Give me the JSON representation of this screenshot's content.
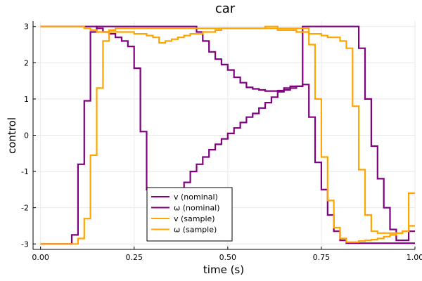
{
  "chart_data": {
    "type": "line",
    "step": true,
    "title": "car",
    "xlabel": "time (s)",
    "ylabel": "control",
    "xlim": [
      -0.02,
      1.0
    ],
    "ylim": [
      -3.15,
      3.15
    ],
    "grid": true,
    "legend_position": "bottom-center",
    "x_ticks": [
      0.0,
      0.25,
      0.5,
      0.75,
      1.0
    ],
    "x_tick_labels": [
      "0.00",
      "0.25",
      "0.50",
      "0.75",
      "1.00"
    ],
    "y_ticks": [
      -3,
      -2,
      -1,
      0,
      1,
      2,
      3
    ],
    "y_tick_labels": [
      "-3",
      "-2",
      "-1",
      "0",
      "1",
      "2",
      "3"
    ],
    "x": [
      0.0,
      0.0167,
      0.0333,
      0.05,
      0.0667,
      0.0833,
      0.1,
      0.1167,
      0.1333,
      0.15,
      0.1667,
      0.1833,
      0.2,
      0.2167,
      0.2333,
      0.25,
      0.2667,
      0.2833,
      0.3,
      0.3167,
      0.3333,
      0.35,
      0.3667,
      0.3833,
      0.4,
      0.4167,
      0.4333,
      0.45,
      0.4667,
      0.4833,
      0.5,
      0.5167,
      0.5333,
      0.55,
      0.5667,
      0.5833,
      0.6,
      0.6167,
      0.6333,
      0.65,
      0.6667,
      0.6833,
      0.7,
      0.7167,
      0.7333,
      0.75,
      0.7667,
      0.7833,
      0.8,
      0.8167,
      0.8333,
      0.85,
      0.8667,
      0.8833,
      0.9,
      0.9167,
      0.9333,
      0.95,
      0.9667,
      0.9833
    ],
    "x_end": 1.0,
    "series": [
      {
        "name": "v (nominal)",
        "color": "#800080",
        "values": [
          -3.0,
          -3.0,
          -3.0,
          -3.0,
          -3.0,
          -2.75,
          -0.8,
          0.95,
          2.85,
          3.0,
          3.0,
          3.0,
          3.0,
          3.0,
          3.0,
          3.0,
          3.0,
          3.0,
          3.0,
          3.0,
          3.0,
          3.0,
          3.0,
          3.0,
          3.0,
          2.85,
          2.6,
          2.3,
          2.1,
          1.95,
          1.8,
          1.6,
          1.45,
          1.32,
          1.28,
          1.25,
          1.22,
          1.22,
          1.23,
          1.25,
          1.3,
          1.35,
          1.4,
          0.5,
          -0.75,
          -1.5,
          -2.2,
          -2.65,
          -2.9,
          -2.98,
          -2.98,
          -2.98,
          -2.98,
          -2.98,
          -2.98,
          -2.98,
          -2.98,
          -2.98,
          -2.98,
          -2.98
        ]
      },
      {
        "name": "ω (nominal)",
        "color": "#800080",
        "values": [
          3.0,
          3.0,
          3.0,
          3.0,
          3.0,
          3.0,
          3.0,
          3.0,
          3.0,
          2.95,
          2.85,
          2.8,
          2.7,
          2.6,
          2.45,
          1.85,
          0.1,
          -1.5,
          -2.6,
          -2.5,
          -2.2,
          -1.9,
          -1.6,
          -1.3,
          -1.0,
          -0.8,
          -0.6,
          -0.4,
          -0.25,
          -0.1,
          0.05,
          0.2,
          0.35,
          0.5,
          0.6,
          0.75,
          0.9,
          1.05,
          1.2,
          1.3,
          1.35,
          1.35,
          3.0,
          3.0,
          3.0,
          3.0,
          3.0,
          3.0,
          3.0,
          3.0,
          3.0,
          2.4,
          1.0,
          -0.3,
          -1.2,
          -2.0,
          -2.6,
          -2.9,
          -2.9,
          -2.65
        ]
      },
      {
        "name": "v (sample)",
        "color": "#FFA500",
        "values": [
          -3.0,
          -3.0,
          -3.0,
          -3.0,
          -3.0,
          -3.0,
          -2.85,
          -2.3,
          -0.55,
          1.3,
          2.6,
          2.9,
          2.95,
          2.95,
          2.95,
          2.95,
          2.95,
          2.95,
          2.95,
          2.95,
          2.95,
          2.95,
          2.95,
          2.95,
          2.95,
          2.95,
          2.95,
          2.95,
          2.95,
          2.95,
          2.95,
          2.95,
          2.95,
          2.95,
          2.95,
          2.95,
          2.95,
          2.95,
          2.95,
          2.95,
          2.95,
          2.95,
          2.95,
          2.5,
          1.0,
          -0.6,
          -1.8,
          -2.55,
          -2.85,
          -2.95,
          -2.95,
          -2.92,
          -2.9,
          -2.88,
          -2.85,
          -2.8,
          -2.75,
          -2.7,
          -2.65,
          -1.6
        ]
      },
      {
        "name": "ω (sample)",
        "color": "#FFA500",
        "values": [
          3.0,
          3.0,
          3.0,
          3.0,
          3.0,
          3.0,
          3.0,
          2.95,
          2.9,
          2.85,
          2.85,
          2.85,
          2.85,
          2.85,
          2.85,
          2.8,
          2.8,
          2.75,
          2.7,
          2.55,
          2.6,
          2.65,
          2.7,
          2.75,
          2.8,
          2.8,
          2.85,
          2.85,
          2.9,
          2.95,
          2.95,
          2.95,
          2.95,
          2.95,
          2.95,
          2.95,
          3.0,
          3.0,
          2.9,
          2.9,
          2.9,
          2.85,
          2.85,
          2.8,
          2.8,
          2.75,
          2.7,
          2.7,
          2.6,
          2.4,
          0.8,
          -0.95,
          -2.2,
          -2.65,
          -2.7,
          -2.7,
          -2.7,
          -2.7,
          -2.65,
          -2.5
        ]
      }
    ],
    "y_override": {
      "v (nominal)": null
    }
  }
}
